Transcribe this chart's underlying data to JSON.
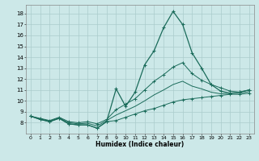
{
  "xlabel": "Humidex (Indice chaleur)",
  "bg_color": "#cce8e8",
  "grid_color": "#aacccc",
  "line_color": "#1a6b5a",
  "xlim": [
    -0.5,
    23.5
  ],
  "ylim": [
    7.0,
    18.8
  ],
  "yticks": [
    8,
    9,
    10,
    11,
    12,
    13,
    14,
    15,
    16,
    17,
    18
  ],
  "xticks": [
    0,
    1,
    2,
    3,
    4,
    5,
    6,
    7,
    8,
    9,
    10,
    11,
    12,
    13,
    14,
    15,
    16,
    17,
    18,
    19,
    20,
    21,
    22,
    23
  ],
  "series_main": [
    8.6,
    8.3,
    8.1,
    8.4,
    7.9,
    7.8,
    7.8,
    7.5,
    8.1,
    11.1,
    9.5,
    10.8,
    13.3,
    14.6,
    16.7,
    18.2,
    17.0,
    14.4,
    13.0,
    11.5,
    10.9,
    10.7,
    10.8,
    11.0
  ],
  "series_min": [
    8.6,
    8.3,
    8.1,
    8.4,
    7.9,
    7.8,
    7.8,
    7.5,
    8.1,
    8.2,
    8.5,
    8.8,
    9.1,
    9.3,
    9.6,
    9.9,
    10.1,
    10.2,
    10.3,
    10.4,
    10.5,
    10.6,
    10.6,
    10.7
  ],
  "series_max": [
    8.6,
    8.4,
    8.2,
    8.5,
    8.1,
    8.0,
    8.1,
    7.9,
    8.3,
    9.2,
    9.7,
    10.2,
    11.0,
    11.8,
    12.4,
    13.1,
    13.5,
    12.5,
    11.9,
    11.5,
    11.2,
    10.9,
    10.8,
    11.0
  ],
  "series_avg": [
    8.6,
    8.35,
    8.15,
    8.45,
    8.0,
    7.9,
    7.95,
    7.7,
    8.2,
    8.7,
    9.1,
    9.5,
    10.0,
    10.55,
    11.0,
    11.5,
    11.8,
    11.35,
    11.1,
    10.8,
    10.65,
    10.7,
    10.7,
    10.85
  ]
}
